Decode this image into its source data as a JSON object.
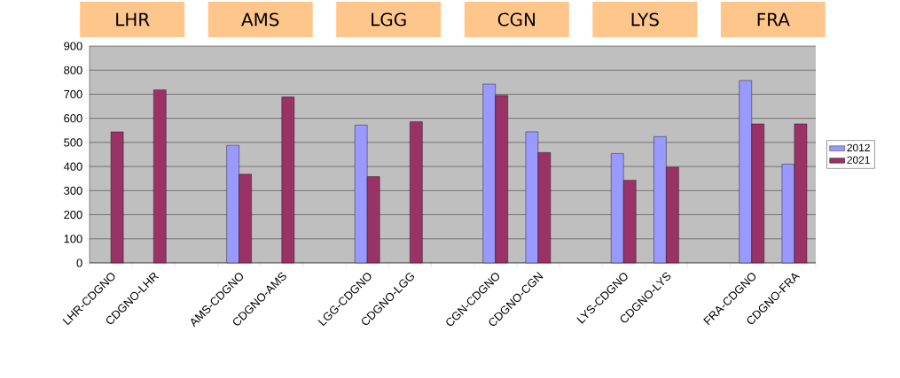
{
  "chart_data": {
    "type": "bar",
    "categories": [
      "LHR-CDGNO",
      "CDGNO-LHR",
      null,
      "AMS-CDGNO",
      "CDGNO-AMS",
      null,
      "LGG-CDGNO",
      "CDGNO-LGG",
      null,
      "CGN-CDGNO",
      "CDGNO-CGN",
      null,
      "LYS-CDGNO",
      "CDGNO-LYS",
      null,
      "FRA-CDGNO",
      "CDGNO-FRA"
    ],
    "series": [
      {
        "name": "2012",
        "color": "#9999ff",
        "values": [
          null,
          null,
          null,
          488,
          null,
          null,
          572,
          null,
          null,
          742,
          544,
          null,
          454,
          524,
          null,
          757,
          410
        ]
      },
      {
        "name": "2021",
        "color": "#993366",
        "values": [
          544,
          718,
          null,
          368,
          689,
          null,
          358,
          586,
          null,
          695,
          458,
          null,
          343,
          397,
          null,
          577,
          577
        ]
      }
    ],
    "ylim": [
      0,
      900
    ],
    "yticks": [
      0,
      100,
      200,
      300,
      400,
      500,
      600,
      700,
      800,
      900
    ],
    "grid": "y",
    "legend": "right",
    "annotations": [
      "LHR",
      "AMS",
      "LGG",
      "CGN",
      "LYS",
      "FRA"
    ]
  }
}
